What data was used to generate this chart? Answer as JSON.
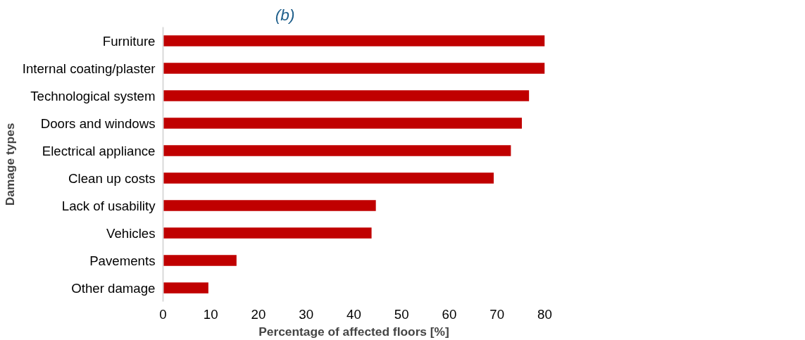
{
  "chart_data": {
    "type": "bar",
    "orientation": "horizontal",
    "xlabel": "Percentage of affected floors [%]",
    "ylabel": "Damage types",
    "categories": [
      "Furniture",
      "Internal coating/plaster",
      "Technological system",
      "Doors and windows",
      "Electrical appliance",
      "Clean up costs",
      "Lack of usability",
      "Vehicles",
      "Pavements",
      "Other damage"
    ],
    "values": [
      80,
      80,
      76.7,
      75.2,
      72.9,
      69.3,
      44.6,
      43.7,
      15.4,
      9.5
    ],
    "color": "#c00000",
    "xlim": [
      0,
      80
    ],
    "xticks": [
      0,
      10,
      20,
      30,
      40,
      50,
      60,
      70,
      80
    ],
    "grid": false,
    "annotations": [
      "(b)"
    ]
  }
}
